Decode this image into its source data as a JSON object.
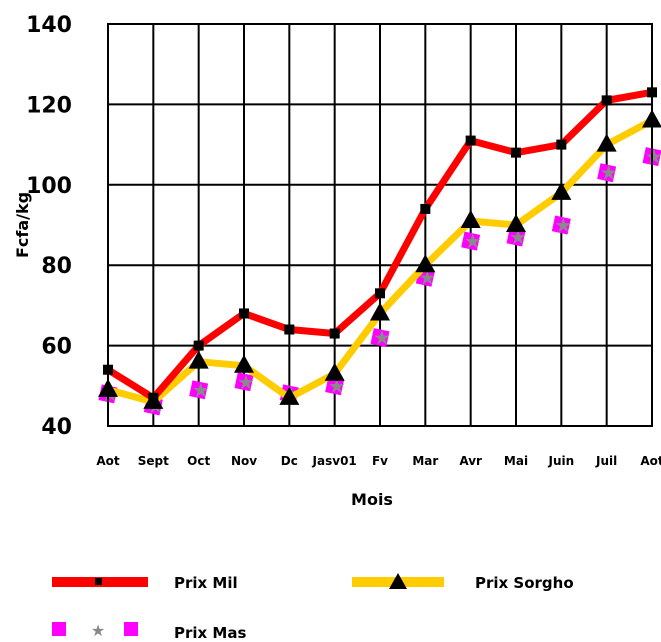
{
  "chart_data": {
    "type": "line",
    "categories": [
      "Aot",
      "Sept",
      "Oct",
      "Nov",
      "Dc",
      "Jasv01",
      "Fv",
      "Mar",
      "Avr",
      "Mai",
      "Juin",
      "Juil",
      "Aot"
    ],
    "series": [
      {
        "name": "Prix Mil",
        "color": "#ff0000",
        "marker": "square",
        "values": [
          54,
          47,
          60,
          68,
          64,
          63,
          73,
          94,
          111,
          108,
          110,
          121,
          123
        ]
      },
      {
        "name": "Prix Sorgho",
        "color": "#ffcc00",
        "marker": "triangle",
        "values": [
          49,
          46,
          56,
          55,
          47,
          53,
          68,
          80,
          91,
          90,
          98,
          110,
          116
        ]
      },
      {
        "name": "Prix Mas",
        "color": "#ff00ff",
        "marker": "square-star",
        "values": [
          48,
          45,
          49,
          51,
          48,
          50,
          62,
          77,
          86,
          87,
          90,
          103,
          107
        ]
      }
    ],
    "xlabel": "Mois",
    "ylabel": "Fcfa/kg",
    "ylim": [
      40,
      140
    ],
    "yticks": [
      40,
      60,
      80,
      100,
      120,
      140
    ],
    "grid": true,
    "legend": "bottom"
  }
}
